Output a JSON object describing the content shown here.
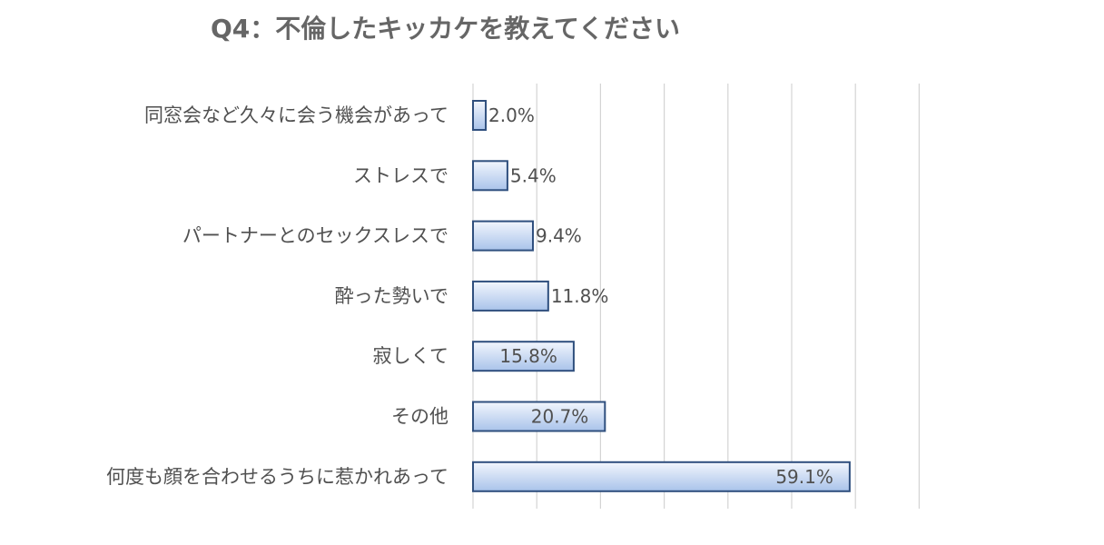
{
  "chart_data": {
    "type": "bar",
    "orientation": "horizontal",
    "title": "Q4：不倫したキッカケを教えてください",
    "categories": [
      "同窓会など久々に会う機会があって",
      "ストレスで",
      "パートナーとのセックスレスで",
      "酔った勢いで",
      "寂しくて",
      "その他",
      "何度も顔を合わせるうちに惹かれあって"
    ],
    "values": [
      2.0,
      5.4,
      9.4,
      11.8,
      15.8,
      20.7,
      59.1
    ],
    "data_labels": [
      "2.0%",
      "5.4%",
      "9.4%",
      "11.8%",
      "15.8%",
      "20.7%",
      "59.1%"
    ],
    "xlim": [
      0,
      70
    ],
    "grid": true,
    "legend": "none",
    "colors": {
      "bar_fill_light": "#f2f6fd",
      "bar_fill_dark": "#a9c3ea",
      "bar_edge": "#2f4f7e",
      "grid": "#d4d4d4",
      "text": "#505050",
      "title": "#666666"
    }
  }
}
